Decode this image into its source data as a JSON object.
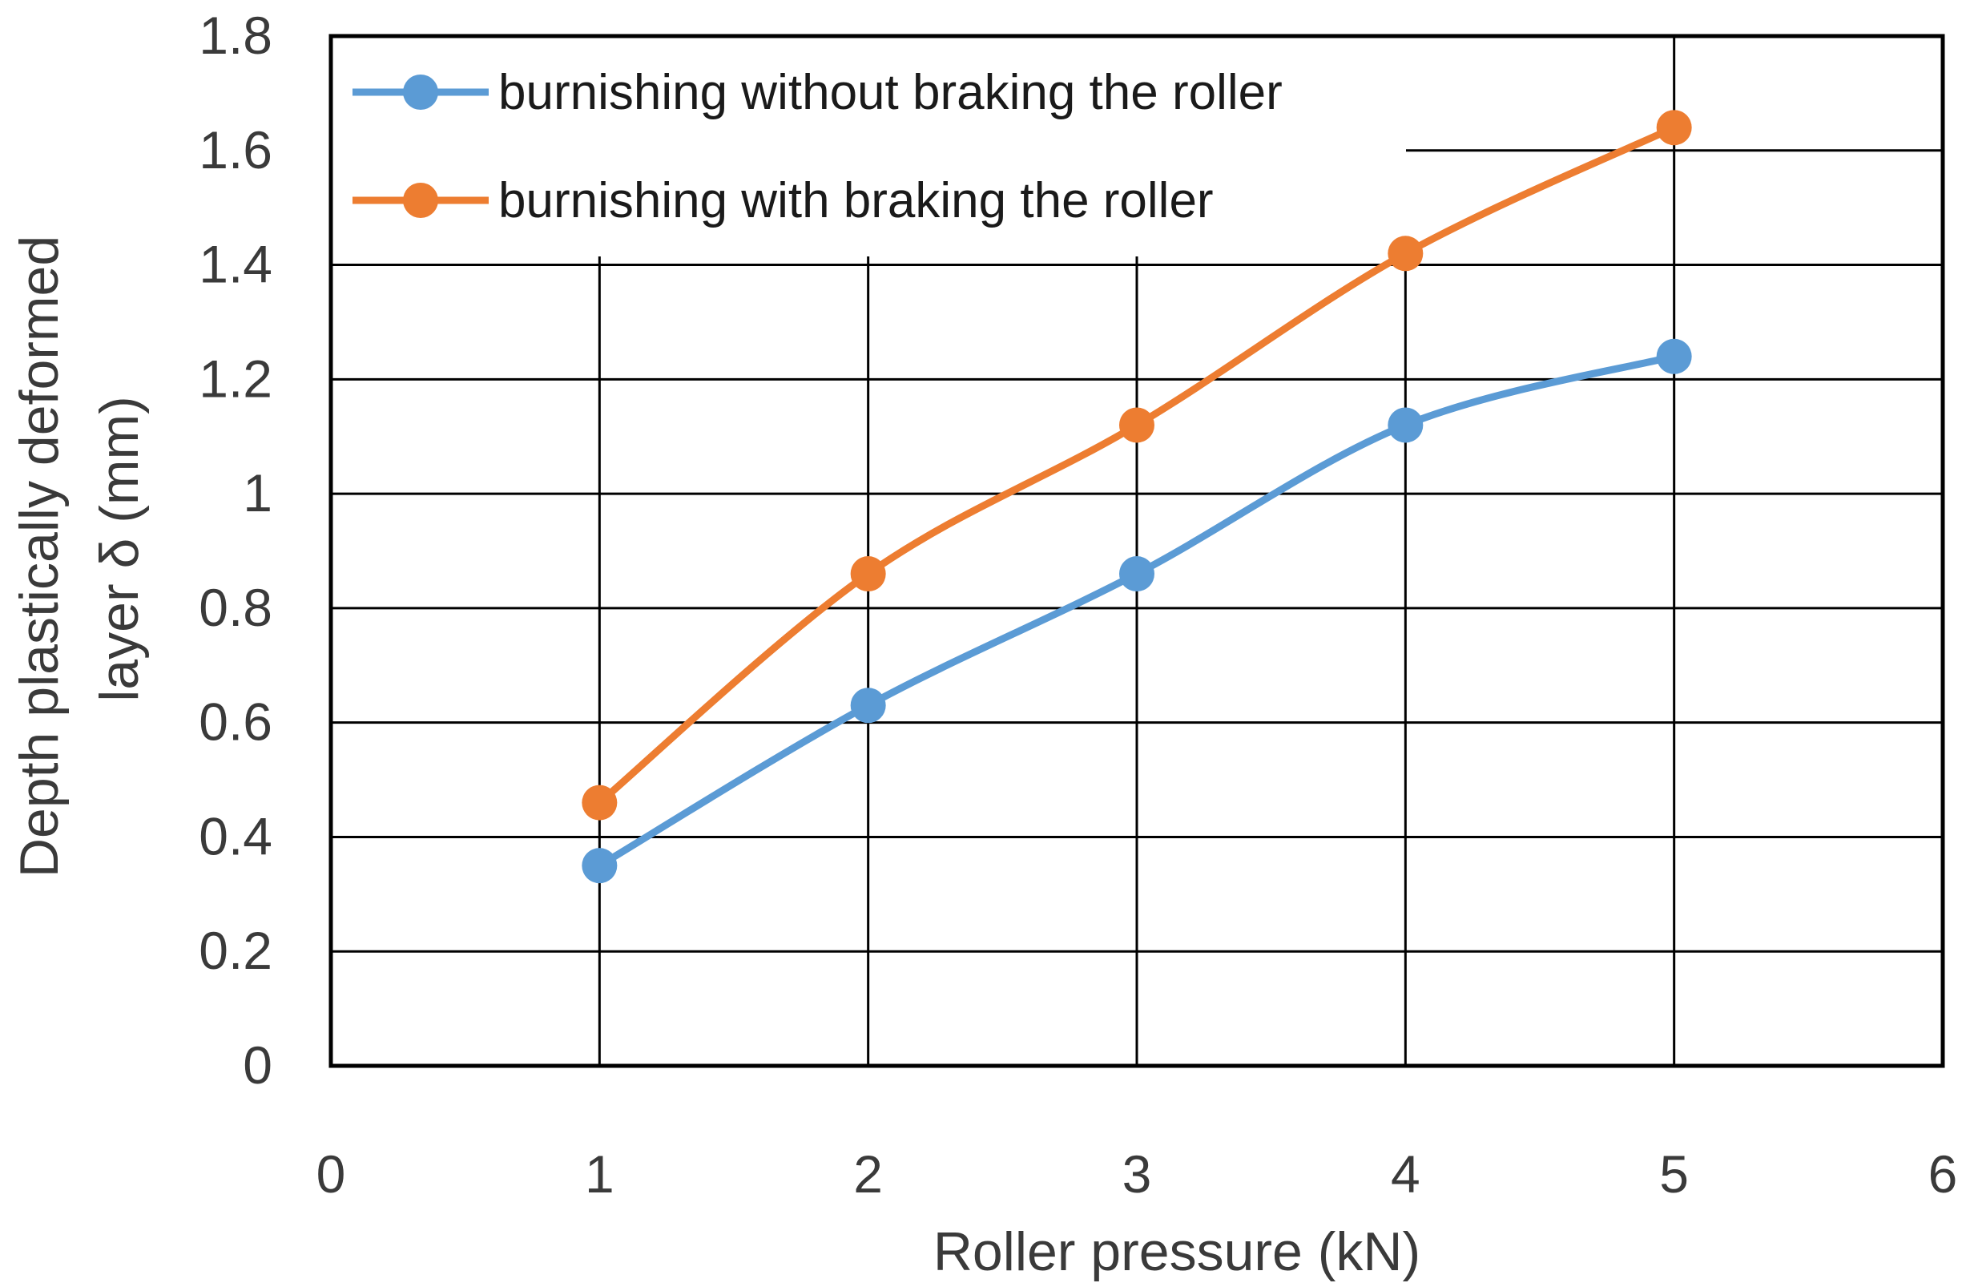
{
  "chart_data": {
    "type": "line",
    "title": "",
    "xlabel": "Roller pressure (kN)",
    "ylabel": [
      "Depth plastically  deformed",
      "layer δ (mm)"
    ],
    "xlim": [
      0,
      6
    ],
    "ylim": [
      0,
      1.8
    ],
    "x_ticks": [
      0,
      1,
      2,
      3,
      4,
      5,
      6
    ],
    "y_ticks": [
      "0",
      "0.2",
      "0.4",
      "0.6",
      "0.8",
      "1",
      "1.2",
      "1.4",
      "1.6",
      "1.8"
    ],
    "grid": true,
    "legend_position": "top-left",
    "series": [
      {
        "name": "burnishing without braking the roller",
        "color": "#5b9bd5",
        "x": [
          1,
          2,
          3,
          4,
          5
        ],
        "y": [
          0.35,
          0.63,
          0.86,
          1.12,
          1.24
        ]
      },
      {
        "name": "burnishing with braking the roller",
        "color": "#ed7d31",
        "x": [
          1,
          2,
          3,
          4,
          5
        ],
        "y": [
          0.46,
          0.86,
          1.12,
          1.42,
          1.64
        ]
      }
    ]
  }
}
